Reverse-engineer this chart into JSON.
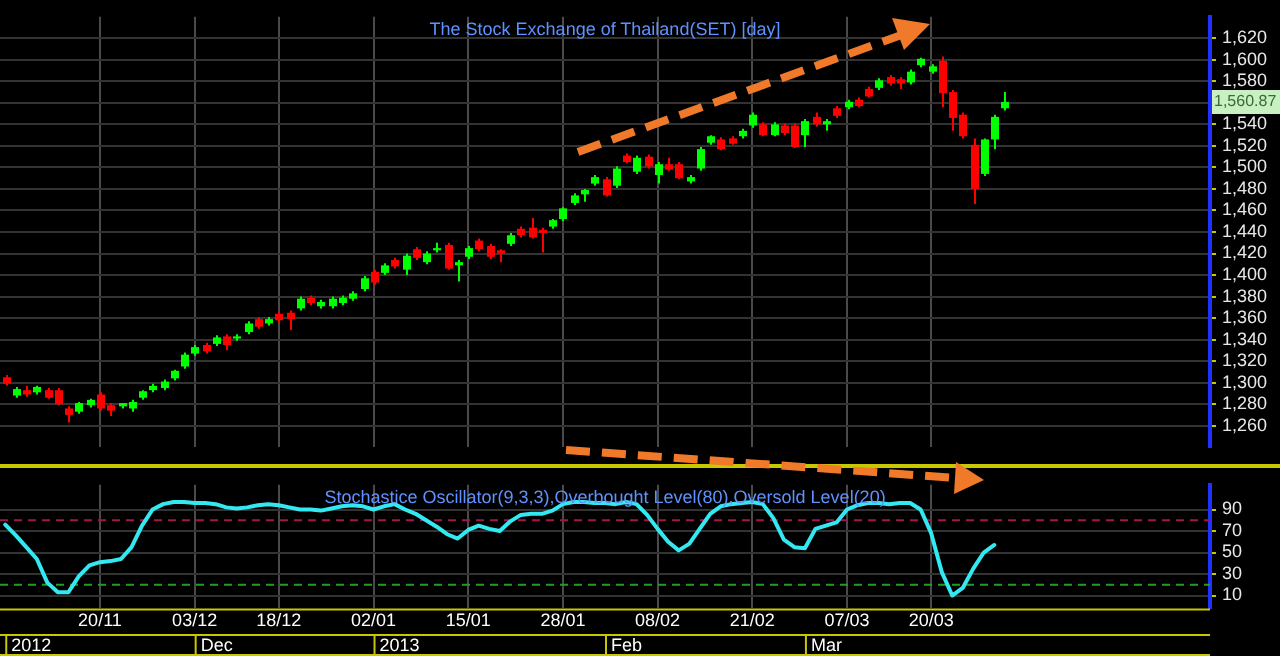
{
  "chart_data": [
    {
      "type": "candlestick",
      "title": "The Stock Exchange of Thailand(SET) [day]",
      "categories": [
        null,
        null,
        null,
        null,
        null,
        null,
        null,
        null,
        null,
        null,
        null,
        null,
        null,
        null,
        null,
        null,
        null,
        null,
        null,
        null,
        null,
        null,
        null,
        null,
        null,
        null,
        null,
        null,
        null,
        null,
        null,
        null,
        null,
        null,
        null,
        null,
        null,
        null,
        null,
        null,
        null,
        null,
        null,
        null,
        null,
        null,
        null,
        null,
        null,
        null,
        null,
        null,
        null,
        null,
        null,
        null,
        null,
        null,
        null,
        null,
        null,
        null,
        null,
        null,
        null,
        null,
        null,
        null,
        null,
        null,
        null,
        null,
        null,
        null,
        null,
        null,
        null,
        null,
        null,
        null,
        null,
        null,
        null,
        null,
        null,
        null,
        null,
        null,
        null,
        null,
        null,
        null,
        null,
        null,
        null,
        null,
        null,
        null,
        null,
        null,
        null,
        null,
        null,
        null,
        null,
        null,
        null,
        null,
        null,
        null,
        null,
        null,
        null,
        null,
        null
      ],
      "ohlc": [
        [
          1305,
          1307,
          1297,
          1299
        ],
        [
          1288,
          1296,
          1286,
          1294
        ],
        [
          1293,
          1297,
          1287,
          1289
        ],
        [
          1291,
          1297,
          1289,
          1296
        ],
        [
          1293,
          1295,
          1285,
          1286
        ],
        [
          1293,
          1295,
          1279,
          1280
        ],
        [
          1276,
          1278,
          1263,
          1270
        ],
        [
          1273,
          1282,
          1271,
          1281
        ],
        [
          1279,
          1285,
          1277,
          1284
        ],
        [
          1289,
          1291,
          1274,
          1276
        ],
        [
          1279,
          1281,
          1269,
          1274
        ],
        [
          1278,
          1281,
          1276,
          1281
        ],
        [
          1276,
          1284,
          1273,
          1282
        ],
        [
          1286,
          1293,
          1284,
          1292
        ],
        [
          1293,
          1299,
          1291,
          1297
        ],
        [
          1295,
          1303,
          1293,
          1301
        ],
        [
          1304,
          1312,
          1302,
          1311
        ],
        [
          1315,
          1328,
          1313,
          1326
        ],
        [
          1327,
          1335,
          1325,
          1333
        ],
        [
          1335,
          1337,
          1327,
          1329
        ],
        [
          1336,
          1344,
          1334,
          1342
        ],
        [
          1343,
          1345,
          1330,
          1335
        ],
        [
          1341,
          1345,
          1339,
          1343
        ],
        [
          1347,
          1357,
          1345,
          1355
        ],
        [
          1359,
          1361,
          1350,
          1352
        ],
        [
          1355,
          1361,
          1353,
          1359
        ],
        [
          1364,
          1366,
          1356,
          1358
        ],
        [
          1365,
          1367,
          1349,
          1359
        ],
        [
          1369,
          1380,
          1367,
          1378
        ],
        [
          1379,
          1381,
          1372,
          1374
        ],
        [
          1371,
          1377,
          1369,
          1375
        ],
        [
          1371,
          1380,
          1369,
          1378
        ],
        [
          1374,
          1381,
          1372,
          1379
        ],
        [
          1378,
          1385,
          1376,
          1383
        ],
        [
          1387,
          1399,
          1385,
          1397
        ],
        [
          1403,
          1405,
          1391,
          1393
        ],
        [
          1402,
          1411,
          1400,
          1409
        ],
        [
          1414,
          1416,
          1406,
          1408
        ],
        [
          1405,
          1420,
          1400,
          1418
        ],
        [
          1424,
          1426,
          1414,
          1416
        ],
        [
          1412,
          1422,
          1410,
          1420
        ],
        [
          1423,
          1430,
          1421,
          1425
        ],
        [
          1428,
          1430,
          1405,
          1406
        ],
        [
          1409,
          1414,
          1394,
          1412
        ],
        [
          1417,
          1427,
          1415,
          1425
        ],
        [
          1432,
          1434,
          1422,
          1424
        ],
        [
          1427,
          1429,
          1415,
          1417
        ],
        [
          1423,
          1424,
          1412,
          1420
        ],
        [
          1429,
          1439,
          1427,
          1437
        ],
        [
          1443,
          1445,
          1435,
          1437
        ],
        [
          1444,
          1453,
          1434,
          1435
        ],
        [
          1442,
          1444,
          1421,
          1439
        ],
        [
          1445,
          1452,
          1443,
          1451
        ],
        [
          1452,
          1463,
          1450,
          1462
        ],
        [
          1467,
          1476,
          1465,
          1474
        ],
        [
          1475,
          1480,
          1468,
          1479
        ],
        [
          1485,
          1493,
          1483,
          1491
        ],
        [
          1489,
          1491,
          1473,
          1474
        ],
        [
          1483,
          1501,
          1481,
          1499
        ],
        [
          1511,
          1513,
          1504,
          1505
        ],
        [
          1496,
          1511,
          1494,
          1509
        ],
        [
          1510,
          1512,
          1499,
          1501
        ],
        [
          1493,
          1505,
          1485,
          1503
        ],
        [
          1503,
          1509,
          1497,
          1498
        ],
        [
          1503,
          1505,
          1489,
          1490
        ],
        [
          1487,
          1493,
          1485,
          1491
        ],
        [
          1499,
          1519,
          1497,
          1517
        ],
        [
          1523,
          1530,
          1521,
          1529
        ],
        [
          1526,
          1528,
          1516,
          1517
        ],
        [
          1527,
          1529,
          1521,
          1522
        ],
        [
          1529,
          1536,
          1527,
          1534
        ],
        [
          1539,
          1551,
          1537,
          1549
        ],
        [
          1540,
          1542,
          1529,
          1530
        ],
        [
          1530,
          1542,
          1529,
          1540
        ],
        [
          1539,
          1541,
          1530,
          1532
        ],
        [
          1539,
          1541,
          1518,
          1519
        ],
        [
          1530,
          1545,
          1519,
          1543
        ],
        [
          1547,
          1551,
          1538,
          1540
        ],
        [
          1540,
          1545,
          1534,
          1543
        ],
        [
          1555,
          1557,
          1546,
          1548
        ],
        [
          1556,
          1563,
          1554,
          1561
        ],
        [
          1563,
          1565,
          1556,
          1557
        ],
        [
          1573,
          1575,
          1565,
          1566
        ],
        [
          1574,
          1583,
          1572,
          1581
        ],
        [
          1584,
          1586,
          1576,
          1578
        ],
        [
          1582,
          1584,
          1573,
          1578
        ],
        [
          1579,
          1591,
          1577,
          1589
        ],
        [
          1595,
          1602,
          1593,
          1601
        ],
        [
          1589,
          1596,
          1587,
          1594
        ],
        [
          1599,
          1603,
          1556,
          1569
        ],
        [
          1570,
          1572,
          1534,
          1546
        ],
        [
          1549,
          1551,
          1527,
          1529
        ],
        [
          1521,
          1527,
          1466,
          1480
        ],
        [
          1494,
          1527,
          1492,
          1526
        ],
        [
          1526,
          1549,
          1517,
          1547
        ],
        [
          1555,
          1570,
          1553,
          1560.87
        ],
        null,
        null,
        null,
        null,
        null,
        null,
        null,
        null,
        null,
        null,
        null,
        null,
        null,
        null,
        null,
        null,
        null,
        null,
        null
      ],
      "colors": [
        "#ff0000",
        "#00ff00",
        "#ff0000",
        "#00ff00",
        "#ff0000",
        "#ff0000",
        "#ff0000",
        "#00ff00",
        "#00ff00",
        "#ff0000",
        "#ff0000",
        "#00ff00",
        "#00ff00",
        "#00ff00",
        "#00ff00",
        "#00ff00",
        "#00ff00",
        "#00ff00",
        "#00ff00",
        "#ff0000",
        "#00ff00",
        "#ff0000",
        "#00ff00",
        "#00ff00",
        "#ff0000",
        "#00ff00",
        "#ff0000",
        "#ff0000",
        "#00ff00",
        "#ff0000",
        "#00ff00",
        "#00ff00",
        "#00ff00",
        "#00ff00",
        "#00ff00",
        "#ff0000",
        "#00ff00",
        "#ff0000",
        "#00ff00",
        "#ff0000",
        "#00ff00",
        "#00ff00",
        "#ff0000",
        "#00ff00",
        "#00ff00",
        "#ff0000",
        "#ff0000",
        "#ff0000",
        "#00ff00",
        "#ff0000",
        "#ff0000",
        "#ff0000",
        "#00ff00",
        "#00ff00",
        "#00ff00",
        "#00ff00",
        "#00ff00",
        "#ff0000",
        "#00ff00",
        "#ff0000",
        "#00ff00",
        "#ff0000",
        "#00ff00",
        "#ff0000",
        "#ff0000",
        "#00ff00",
        "#00ff00",
        "#00ff00",
        "#ff0000",
        "#ff0000",
        "#00ff00",
        "#00ff00",
        "#ff0000",
        "#00ff00",
        "#ff0000",
        "#ff0000",
        "#00ff00",
        "#ff0000",
        "#00ff00",
        "#ff0000",
        "#00ff00",
        "#ff0000",
        "#ff0000",
        "#00ff00",
        "#ff0000",
        "#ff0000",
        "#00ff00",
        "#00ff00",
        "#00ff00",
        "#ff0000",
        "#ff0000",
        "#ff0000",
        "#ff0000",
        "#00ff00",
        "#00ff00",
        "#00ff00",
        null,
        null,
        null,
        null,
        null,
        null,
        null,
        null,
        null,
        null,
        null,
        null,
        null,
        null,
        null,
        null,
        null,
        null,
        null
      ],
      "ylim": [
        1240,
        1640
      ],
      "yticks": [
        {
          "value": 1260,
          "label": "1,260"
        },
        {
          "value": 1280,
          "label": "1,280"
        },
        {
          "value": 1300,
          "label": "1,300"
        },
        {
          "value": 1320,
          "label": "1,320"
        },
        {
          "value": 1340,
          "label": "1,340"
        },
        {
          "value": 1360,
          "label": "1,360"
        },
        {
          "value": 1380,
          "label": "1,380"
        },
        {
          "value": 1400,
          "label": "1,400"
        },
        {
          "value": 1420,
          "label": "1,420"
        },
        {
          "value": 1440,
          "label": "1,440"
        },
        {
          "value": 1460,
          "label": "1,460"
        },
        {
          "value": 1480,
          "label": "1,480"
        },
        {
          "value": 1500,
          "label": "1,500"
        },
        {
          "value": 1520,
          "label": "1,520"
        },
        {
          "value": 1540,
          "label": "1,540"
        },
        {
          "value": 1560,
          "label": null
        },
        {
          "value": 1580,
          "label": "1,580"
        },
        {
          "value": 1600,
          "label": "1,600"
        },
        {
          "value": 1620,
          "label": "1,620"
        }
      ],
      "grid": true,
      "tick_labels": "y",
      "annotations": [
        "1,560.87"
      ]
    },
    {
      "type": "line",
      "title": "Stochastice Oscillator(9,3,3),Overbought Level(80),Oversold Level(20)",
      "categories": [
        null,
        null,
        null,
        null,
        null,
        null,
        null,
        null,
        null,
        "20/11",
        null,
        null,
        null,
        null,
        null,
        null,
        null,
        null,
        "03/12",
        null,
        null,
        null,
        null,
        null,
        null,
        null,
        "18/12",
        null,
        null,
        null,
        null,
        null,
        null,
        null,
        null,
        "02/01",
        null,
        null,
        null,
        null,
        null,
        null,
        null,
        null,
        "15/01",
        null,
        null,
        null,
        null,
        null,
        null,
        null,
        null,
        "28/01",
        null,
        null,
        null,
        null,
        null,
        null,
        null,
        null,
        "08/02",
        null,
        null,
        null,
        null,
        null,
        null,
        null,
        null,
        "21/02",
        null,
        null,
        null,
        null,
        null,
        null,
        null,
        null,
        "07/03",
        null,
        null,
        null,
        null,
        null,
        null,
        null,
        "20/03",
        null,
        null,
        null,
        null,
        null,
        null,
        null,
        null,
        null,
        null,
        null,
        null,
        null,
        null,
        null,
        null,
        null,
        null,
        null,
        null,
        null,
        null,
        null,
        null,
        null,
        null
      ],
      "series": [
        {
          "color": "#33e8f0",
          "values": [
            76,
            66,
            55,
            44,
            22,
            13,
            13,
            28,
            38,
            41,
            42,
            44,
            55,
            75,
            90,
            95,
            97,
            97,
            96,
            96,
            95,
            92,
            91,
            92,
            94,
            95,
            94,
            92,
            90,
            90,
            89,
            91,
            93,
            94,
            93,
            90,
            93,
            95,
            90,
            86,
            80,
            74,
            67,
            63,
            71,
            75,
            72,
            70,
            79,
            85,
            86,
            86,
            89,
            95,
            97,
            97,
            96,
            96,
            95,
            97,
            95,
            85,
            72,
            60,
            52,
            58,
            72,
            86,
            93,
            95,
            96,
            97,
            95,
            82,
            62,
            55,
            54,
            72,
            75,
            78,
            90,
            94,
            96,
            96,
            95,
            96,
            96,
            90,
            68,
            32,
            10,
            17,
            35,
            50,
            57,
            null,
            null,
            null,
            null,
            null,
            null,
            null,
            null,
            null,
            null,
            null,
            null,
            null,
            null,
            null,
            null,
            null,
            null,
            null,
            null
          ]
        }
      ],
      "ylim": [
        -2,
        113
      ],
      "yticks": [
        10,
        30,
        50,
        70,
        90
      ],
      "grid": true,
      "ref_lines": [
        {
          "axis": "y",
          "value": 80,
          "color": "#a01848",
          "line_style": "dashed"
        },
        {
          "axis": "y",
          "value": 20,
          "color": "#20a020",
          "line_style": "dashed"
        }
      ],
      "annotations": [
        "2012",
        "Dec",
        "2013",
        "Feb",
        "Mar"
      ]
    }
  ]
}
